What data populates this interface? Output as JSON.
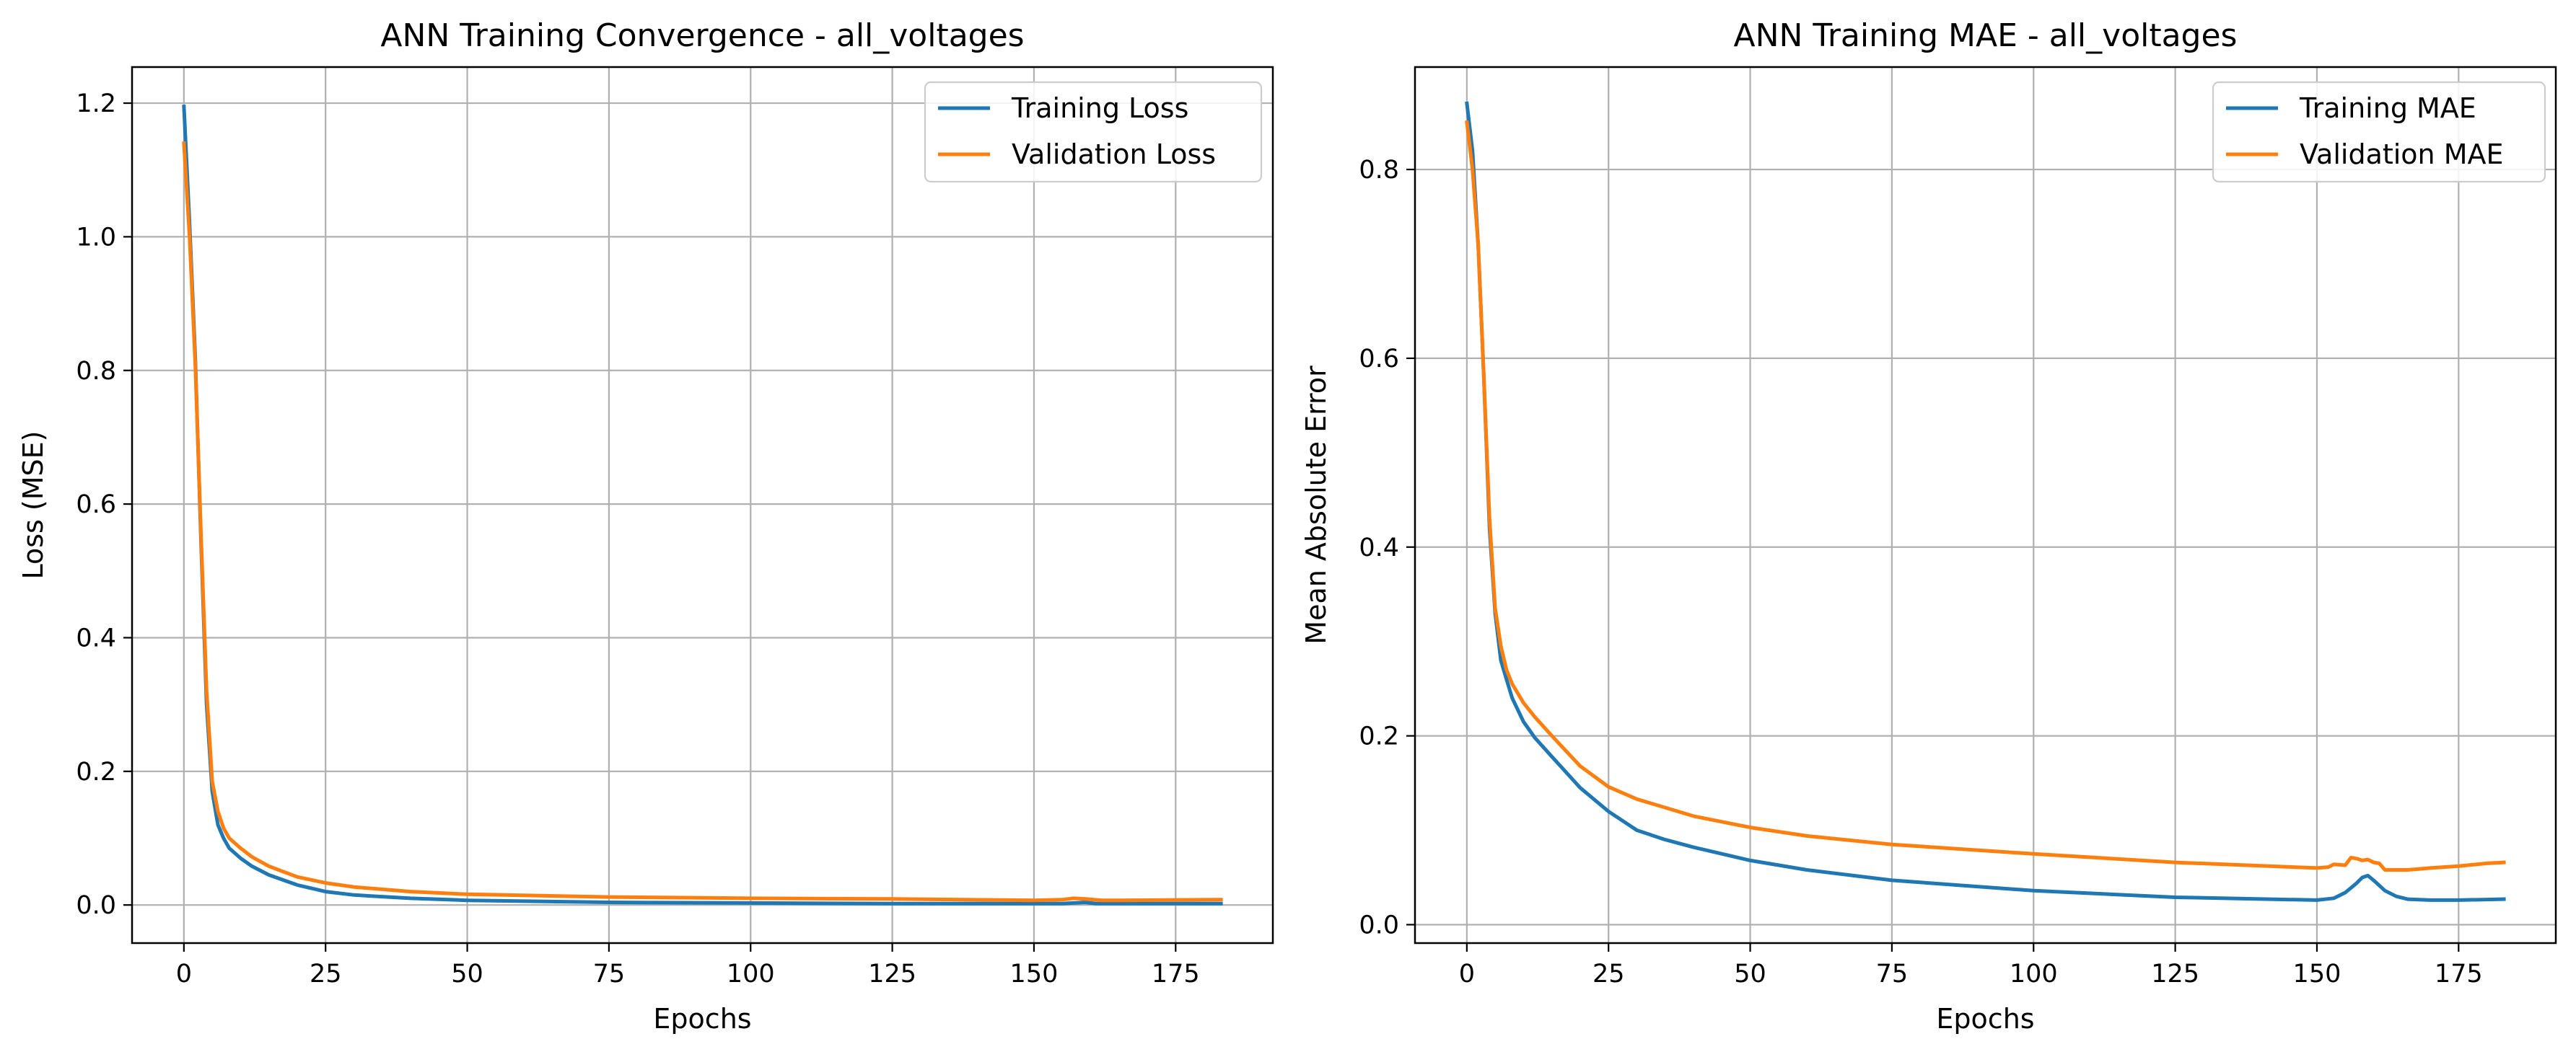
{
  "chart_data": [
    {
      "type": "line",
      "title": "ANN Training Convergence - all_voltages",
      "xlabel": "Epochs",
      "ylabel": "Loss (MSE)",
      "xlim": [
        -9.15,
        192.15
      ],
      "ylim": [
        -0.057,
        1.254
      ],
      "xticks": [
        0,
        25,
        50,
        75,
        100,
        125,
        150,
        175
      ],
      "yticks": [
        0.0,
        0.2,
        0.4,
        0.6,
        0.8,
        1.0,
        1.2
      ],
      "ytick_labels": [
        "0.0",
        "0.2",
        "0.4",
        "0.6",
        "0.8",
        "1.0",
        "1.2"
      ],
      "grid": true,
      "legend": "upper right",
      "series": [
        {
          "name": "Training Loss",
          "color": "#1f77b4",
          "points": [
            [
              0,
              1.195
            ],
            [
              1,
              1.02
            ],
            [
              2,
              0.82
            ],
            [
              3,
              0.55
            ],
            [
              4,
              0.3
            ],
            [
              5,
              0.17
            ],
            [
              6,
              0.12
            ],
            [
              7,
              0.1
            ],
            [
              8,
              0.085
            ],
            [
              10,
              0.07
            ],
            [
              12,
              0.058
            ],
            [
              15,
              0.045
            ],
            [
              20,
              0.03
            ],
            [
              25,
              0.02
            ],
            [
              30,
              0.015
            ],
            [
              40,
              0.01
            ],
            [
              50,
              0.007
            ],
            [
              75,
              0.004
            ],
            [
              100,
              0.003
            ],
            [
              125,
              0.002
            ],
            [
              150,
              0.002
            ],
            [
              155,
              0.002
            ],
            [
              157,
              0.003
            ],
            [
              159,
              0.004
            ],
            [
              161,
              0.002
            ],
            [
              165,
              0.002
            ],
            [
              183,
              0.002
            ]
          ]
        },
        {
          "name": "Validation Loss",
          "color": "#ff7f0e",
          "points": [
            [
              0,
              1.14
            ],
            [
              1,
              1.0
            ],
            [
              2,
              0.81
            ],
            [
              3,
              0.56
            ],
            [
              4,
              0.32
            ],
            [
              5,
              0.185
            ],
            [
              6,
              0.14
            ],
            [
              7,
              0.115
            ],
            [
              8,
              0.1
            ],
            [
              10,
              0.085
            ],
            [
              12,
              0.072
            ],
            [
              15,
              0.058
            ],
            [
              20,
              0.042
            ],
            [
              25,
              0.033
            ],
            [
              30,
              0.027
            ],
            [
              40,
              0.02
            ],
            [
              50,
              0.016
            ],
            [
              75,
              0.012
            ],
            [
              100,
              0.01
            ],
            [
              125,
              0.009
            ],
            [
              150,
              0.007
            ],
            [
              155,
              0.008
            ],
            [
              157,
              0.01
            ],
            [
              159,
              0.009
            ],
            [
              162,
              0.007
            ],
            [
              165,
              0.007
            ],
            [
              183,
              0.008
            ]
          ]
        }
      ]
    },
    {
      "type": "line",
      "title": "ANN Training MAE - all_voltages",
      "xlabel": "Epochs",
      "ylabel": "Mean Absolute Error",
      "xlim": [
        -9.15,
        192.15
      ],
      "ylim": [
        -0.0195,
        0.9085
      ],
      "xticks": [
        0,
        25,
        50,
        75,
        100,
        125,
        150,
        175
      ],
      "yticks": [
        0.0,
        0.2,
        0.4,
        0.6,
        0.8
      ],
      "ytick_labels": [
        "0.0",
        "0.2",
        "0.4",
        "0.6",
        "0.8"
      ],
      "grid": true,
      "legend": "upper right",
      "series": [
        {
          "name": "Training MAE",
          "color": "#1f77b4",
          "points": [
            [
              0,
              0.87
            ],
            [
              1,
              0.82
            ],
            [
              2,
              0.72
            ],
            [
              3,
              0.58
            ],
            [
              4,
              0.42
            ],
            [
              5,
              0.33
            ],
            [
              6,
              0.28
            ],
            [
              7,
              0.26
            ],
            [
              8,
              0.24
            ],
            [
              10,
              0.215
            ],
            [
              12,
              0.198
            ],
            [
              15,
              0.178
            ],
            [
              20,
              0.145
            ],
            [
              25,
              0.12
            ],
            [
              30,
              0.1
            ],
            [
              35,
              0.09
            ],
            [
              40,
              0.082
            ],
            [
              50,
              0.068
            ],
            [
              60,
              0.058
            ],
            [
              75,
              0.047
            ],
            [
              100,
              0.036
            ],
            [
              125,
              0.029
            ],
            [
              150,
              0.026
            ],
            [
              153,
              0.028
            ],
            [
              155,
              0.034
            ],
            [
              157,
              0.044
            ],
            [
              158,
              0.05
            ],
            [
              159,
              0.052
            ],
            [
              160,
              0.047
            ],
            [
              162,
              0.036
            ],
            [
              164,
              0.03
            ],
            [
              166,
              0.027
            ],
            [
              170,
              0.026
            ],
            [
              175,
              0.026
            ],
            [
              183,
              0.027
            ]
          ]
        },
        {
          "name": "Validation MAE",
          "color": "#ff7f0e",
          "points": [
            [
              0,
              0.85
            ],
            [
              1,
              0.8
            ],
            [
              2,
              0.72
            ],
            [
              3,
              0.58
            ],
            [
              4,
              0.43
            ],
            [
              5,
              0.335
            ],
            [
              6,
              0.295
            ],
            [
              7,
              0.27
            ],
            [
              8,
              0.255
            ],
            [
              10,
              0.235
            ],
            [
              12,
              0.22
            ],
            [
              15,
              0.2
            ],
            [
              20,
              0.168
            ],
            [
              25,
              0.146
            ],
            [
              30,
              0.133
            ],
            [
              40,
              0.115
            ],
            [
              50,
              0.103
            ],
            [
              60,
              0.094
            ],
            [
              75,
              0.085
            ],
            [
              100,
              0.075
            ],
            [
              125,
              0.066
            ],
            [
              150,
              0.06
            ],
            [
              152,
              0.061
            ],
            [
              153,
              0.064
            ],
            [
              155,
              0.063
            ],
            [
              156,
              0.071
            ],
            [
              157,
              0.07
            ],
            [
              158,
              0.068
            ],
            [
              159,
              0.069
            ],
            [
              160,
              0.066
            ],
            [
              161,
              0.065
            ],
            [
              162,
              0.058
            ],
            [
              164,
              0.058
            ],
            [
              166,
              0.058
            ],
            [
              168,
              0.059
            ],
            [
              170,
              0.06
            ],
            [
              175,
              0.062
            ],
            [
              180,
              0.065
            ],
            [
              183,
              0.066
            ]
          ]
        }
      ]
    }
  ]
}
